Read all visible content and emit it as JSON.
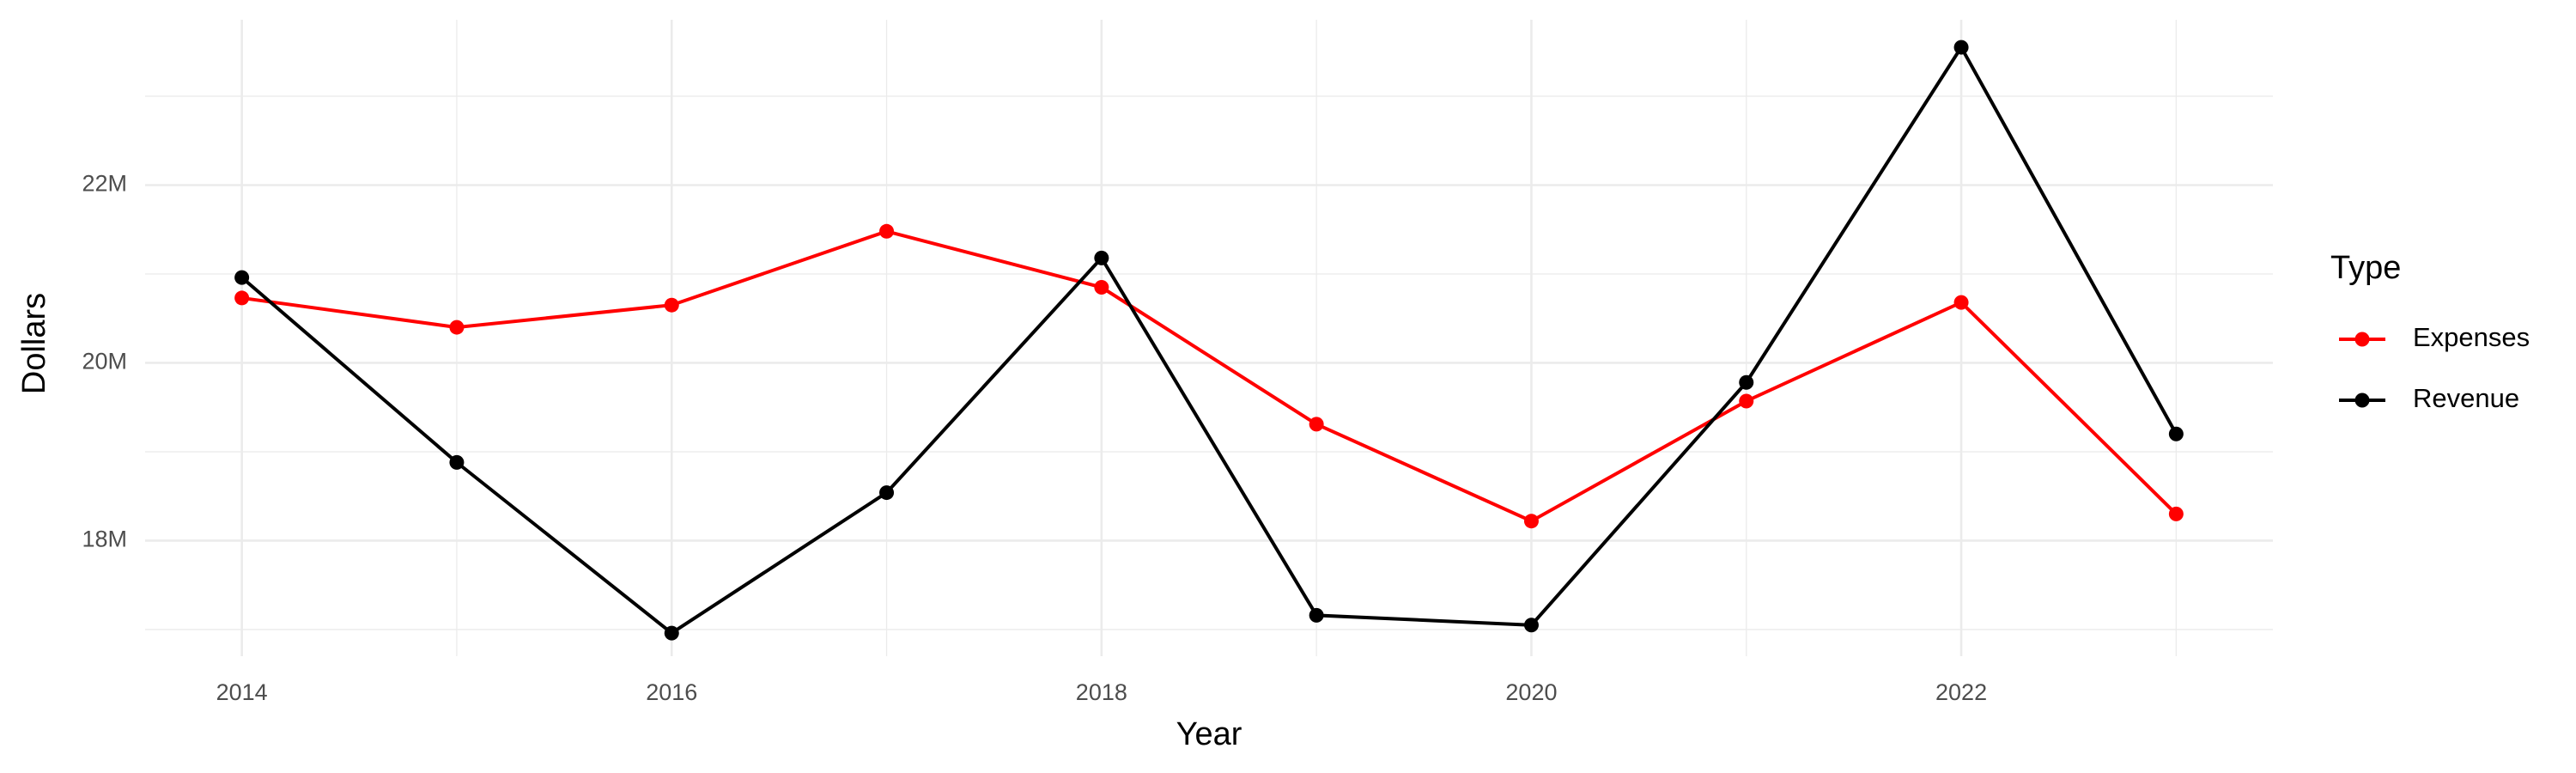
{
  "chart_data": {
    "type": "line",
    "x_label": "Year",
    "y_label": "Dollars",
    "legend_title": "Type",
    "x": [
      2014,
      2015,
      2016,
      2017,
      2018,
      2019,
      2020,
      2021,
      2022,
      2023
    ],
    "series": [
      {
        "name": "Expenses",
        "color": "#ff0000",
        "values": [
          20730000,
          20400000,
          20650000,
          21480000,
          20850000,
          19310000,
          18220000,
          19570000,
          20680000,
          18300000
        ]
      },
      {
        "name": "Revenue",
        "color": "#000000",
        "values": [
          20960000,
          18880000,
          16960000,
          18540000,
          21180000,
          17160000,
          17050000,
          19780000,
          23550000,
          19200000
        ]
      }
    ],
    "xlim": [
      2013.55,
      2023.45
    ],
    "xticks": [
      2014,
      2016,
      2018,
      2020,
      2022
    ],
    "ylim": [
      16700000,
      23860000
    ],
    "yticks": [
      {
        "value": 18000000,
        "label": "18M"
      },
      {
        "value": 20000000,
        "label": "20M"
      },
      {
        "value": 22000000,
        "label": "22M"
      }
    ],
    "grid": true,
    "legend": "right"
  }
}
